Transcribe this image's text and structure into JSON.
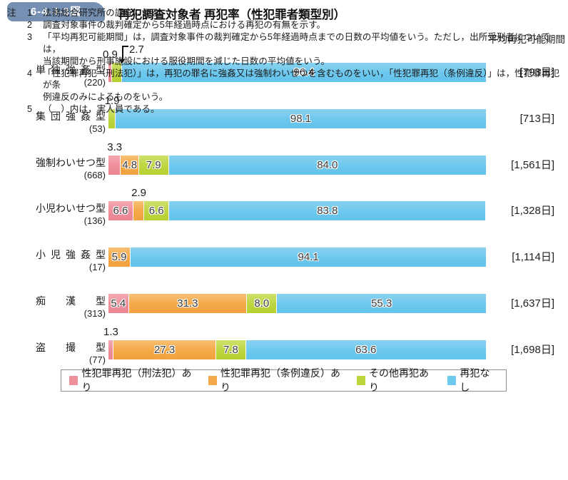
{
  "figure": {
    "badge": "6-4-4-3図",
    "title": "再犯調査対象者 再犯率（性犯罪者類型別）",
    "right_column_header": "平均再犯可能期間"
  },
  "chart_data": {
    "type": "bar",
    "orientation": "horizontal",
    "stacked": true,
    "unit": "%",
    "xlim": [
      0,
      100
    ],
    "legend_position": "bottom",
    "legend": [
      {
        "key": "sex_penal",
        "label": "性犯罪再犯（刑法犯）あり",
        "color": "#ee8f9b"
      },
      {
        "key": "sex_ordinance",
        "label": "性犯罪再犯（条例違反）あり",
        "color": "#f5a94a"
      },
      {
        "key": "other",
        "label": "その他再犯あり",
        "color": "#bcd53c"
      },
      {
        "key": "none",
        "label": "再犯なし",
        "color": "#6ec9ee"
      }
    ],
    "rows": [
      {
        "label": "単独強姦型",
        "count": "(220)",
        "period": "[793日]",
        "segments": [
          {
            "key": "sex_penal",
            "value": 0.9,
            "display": "0.9",
            "label_pos": "above"
          },
          {
            "key": "other",
            "value": 2.7,
            "display": "2.7",
            "label_pos": "above-arrow"
          },
          {
            "key": "none",
            "value": 96.4,
            "display": "96.4",
            "label_pos": "inside"
          }
        ]
      },
      {
        "label": "集団強姦型",
        "count": "(53)",
        "period": "[713日]",
        "segments": [
          {
            "key": "other",
            "value": 1.9,
            "display": "1.9",
            "label_pos": "above"
          },
          {
            "key": "none",
            "value": 98.1,
            "display": "98.1",
            "label_pos": "inside"
          }
        ]
      },
      {
        "label": "強制わいせつ型",
        "count": "(668)",
        "period": "[1,561日]",
        "segments": [
          {
            "key": "sex_penal",
            "value": 3.3,
            "display": "3.3",
            "label_pos": "above"
          },
          {
            "key": "sex_ordinance",
            "value": 4.8,
            "display": "4.8",
            "label_pos": "inside"
          },
          {
            "key": "other",
            "value": 7.9,
            "display": "7.9",
            "label_pos": "inside"
          },
          {
            "key": "none",
            "value": 84.0,
            "display": "84.0",
            "label_pos": "inside"
          }
        ]
      },
      {
        "label": "小児わいせつ型",
        "count": "(136)",
        "period": "[1,328日]",
        "segments": [
          {
            "key": "sex_penal",
            "value": 6.6,
            "display": "6.6",
            "label_pos": "inside"
          },
          {
            "key": "sex_ordinance",
            "value": 2.9,
            "display": "2.9",
            "label_pos": "above"
          },
          {
            "key": "other",
            "value": 6.6,
            "display": "6.6",
            "label_pos": "inside"
          },
          {
            "key": "none",
            "value": 83.8,
            "display": "83.8",
            "label_pos": "inside"
          }
        ]
      },
      {
        "label": "小児強姦型",
        "count": "(17)",
        "period": "[1,114日]",
        "segments": [
          {
            "key": "sex_ordinance",
            "value": 5.9,
            "display": "5.9",
            "label_pos": "inside"
          },
          {
            "key": "none",
            "value": 94.1,
            "display": "94.1",
            "label_pos": "inside"
          }
        ]
      },
      {
        "label": "痴漢型",
        "count": "(313)",
        "period": "[1,637日]",
        "segments": [
          {
            "key": "sex_penal",
            "value": 5.4,
            "display": "5.4",
            "label_pos": "inside"
          },
          {
            "key": "sex_ordinance",
            "value": 31.3,
            "display": "31.3",
            "label_pos": "inside"
          },
          {
            "key": "other",
            "value": 8.0,
            "display": "8.0",
            "label_pos": "inside"
          },
          {
            "key": "none",
            "value": 55.3,
            "display": "55.3",
            "label_pos": "inside"
          }
        ]
      },
      {
        "label": "盗撮型",
        "count": "(77)",
        "period": "[1,698日]",
        "segments": [
          {
            "key": "sex_penal",
            "value": 1.3,
            "display": "1.3",
            "label_pos": "above"
          },
          {
            "key": "sex_ordinance",
            "value": 27.3,
            "display": "27.3",
            "label_pos": "inside"
          },
          {
            "key": "other",
            "value": 7.8,
            "display": "7.8",
            "label_pos": "inside"
          },
          {
            "key": "none",
            "value": 63.6,
            "display": "63.6",
            "label_pos": "inside"
          }
        ]
      }
    ]
  },
  "notes": {
    "prefix": "注",
    "items": [
      {
        "num": "1",
        "lines": [
          "法務総合研究所の調査による。"
        ]
      },
      {
        "num": "2",
        "lines": [
          "調査対象事件の裁判確定から5年経過時点における再犯の有無を示す。"
        ]
      },
      {
        "num": "3",
        "lines": [
          "「平均再犯可能期間」は，調査対象事件の裁判確定から5年経過時点までの日数の平均値をいう。ただし，出所受刑者については，",
          "当該期間から刑事施設における服役期間を減じた日数の平均値をいう。"
        ]
      },
      {
        "num": "4",
        "lines": [
          "「性犯罪再犯（刑法犯）」は，再犯の罪名に強姦又は強制わいせつを含むものをいい，「性犯罪再犯（条例違反）」は，性犯罪再犯が条",
          "例違反のみによるものをいう。"
        ]
      },
      {
        "num": "5",
        "lines": [
          "（　）内は，実人員である。"
        ]
      }
    ]
  }
}
